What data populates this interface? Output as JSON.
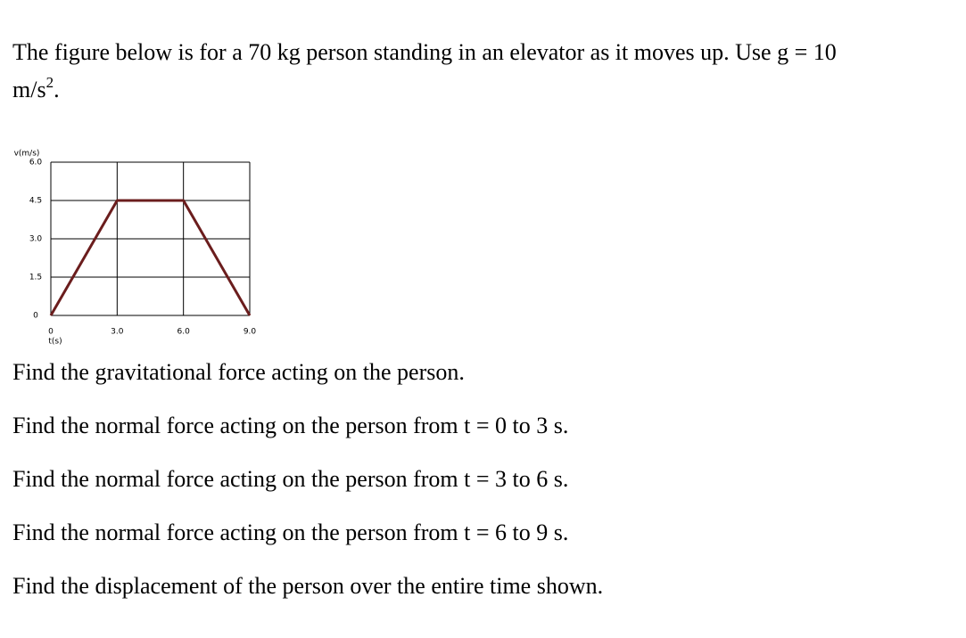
{
  "intro": {
    "line1": "The figure below is for a 70 kg person standing in an elevator as it moves up. Use g = 10",
    "line2": "m/s",
    "exponent": "2",
    "end": "."
  },
  "chart_data": {
    "type": "line",
    "y_label": "v(m/s)",
    "x_label": "t(s)",
    "x": [
      0,
      3,
      6,
      9
    ],
    "values": [
      0,
      4.5,
      4.5,
      0
    ],
    "color": "#6b1d1d",
    "xlim": [
      0,
      9
    ],
    "ylim": [
      0,
      6
    ],
    "xticks": [
      0,
      {
        "value": 3,
        "label": "3.0"
      },
      {
        "value": 6,
        "label": "6.0"
      },
      {
        "value": 9,
        "label": "9.0"
      }
    ],
    "yticks": [
      0,
      1.5,
      {
        "value": 3,
        "label": "3.0"
      },
      4.5,
      {
        "value": 6,
        "label": "6.0"
      }
    ],
    "grid": true
  },
  "questions": [
    "Find the gravitational force acting on the person.",
    "Find the normal force acting on the person from t = 0 to 3 s.",
    "Find the normal force acting on the person from t = 3 to 6 s.",
    "Find the normal force acting on the person from t = 6 to 9 s.",
    "Find the displacement of the person over the entire time shown."
  ]
}
